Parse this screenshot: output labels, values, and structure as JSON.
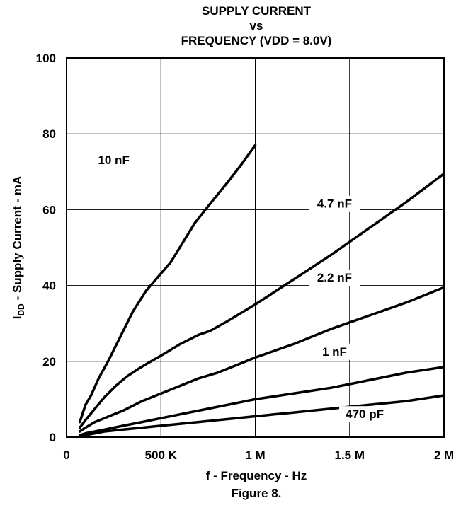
{
  "chart_data": {
    "type": "line",
    "title": [
      "SUPPLY CURRENT",
      "vs",
      "FREQUENCY (VDD = 8.0V)"
    ],
    "xlabel": "f - Frequency - Hz",
    "ylabel": {
      "main": "I",
      "sub": "DD",
      "rest": " - Supply Current - mA"
    },
    "caption": "Figure 8.",
    "xlim": [
      0,
      2000000
    ],
    "ylim": [
      0,
      100
    ],
    "x_ticks": [
      {
        "value": 0,
        "label": "0"
      },
      {
        "value": 500000,
        "label": "500 K"
      },
      {
        "value": 1000000,
        "label": "1 M"
      },
      {
        "value": 1500000,
        "label": "1.5 M"
      },
      {
        "value": 2000000,
        "label": "2 M"
      }
    ],
    "y_ticks": [
      {
        "value": 0,
        "label": "0"
      },
      {
        "value": 20,
        "label": "20"
      },
      {
        "value": 40,
        "label": "40"
      },
      {
        "value": 60,
        "label": "60"
      },
      {
        "value": 80,
        "label": "80"
      },
      {
        "value": 100,
        "label": "100"
      }
    ],
    "grid": true,
    "legend": "inline",
    "series": [
      {
        "name": "10 nF",
        "x": [
          70000,
          100000,
          130000,
          170000,
          220000,
          280000,
          350000,
          420000,
          480000,
          550000,
          600000,
          680000,
          760000,
          850000,
          920000,
          1000000
        ],
        "y": [
          4,
          8.5,
          11,
          15.5,
          20,
          26,
          33,
          38.5,
          42,
          46,
          50,
          56.5,
          61.5,
          67,
          71.5,
          77
        ]
      },
      {
        "name": "4.7 nF",
        "x": [
          70000,
          100000,
          150000,
          200000,
          260000,
          320000,
          380000,
          430000,
          500000,
          600000,
          700000,
          760000,
          850000,
          1000000,
          1200000,
          1400000,
          1600000,
          1800000,
          2000000
        ],
        "y": [
          2.5,
          4.5,
          7.5,
          10.5,
          13.5,
          16,
          18,
          19.5,
          21.5,
          24.5,
          27,
          28,
          30.5,
          35,
          41.5,
          48,
          55,
          62,
          69.5
        ]
      },
      {
        "name": "2.2 nF",
        "x": [
          70000,
          100000,
          150000,
          200000,
          250000,
          300000,
          400000,
          500000,
          600000,
          700000,
          800000,
          900000,
          1000000,
          1200000,
          1400000,
          1600000,
          1800000,
          2000000
        ],
        "y": [
          1.5,
          2.5,
          4,
          5,
          6,
          7,
          9.5,
          11.5,
          13.5,
          15.5,
          17,
          19,
          21,
          24.5,
          28.5,
          32,
          35.5,
          39.5
        ]
      },
      {
        "name": "1 nF",
        "x": [
          70000,
          100000,
          150000,
          200000,
          300000,
          400000,
          500000,
          600000,
          700000,
          800000,
          900000,
          1000000,
          1200000,
          1400000,
          1500000,
          1600000,
          1800000,
          2000000
        ],
        "y": [
          0.5,
          1,
          1.5,
          2,
          3,
          4,
          5,
          6,
          7,
          8,
          9,
          10,
          11.5,
          13,
          14,
          15,
          17,
          18.5
        ]
      },
      {
        "name": "470 pF",
        "x": [
          70000,
          100000,
          150000,
          200000,
          300000,
          400000,
          500000,
          600000,
          700000,
          800000,
          900000,
          1000000,
          1100000,
          1200000,
          1300000,
          1400000,
          1600000,
          1800000,
          2000000
        ],
        "y": [
          0.3,
          0.5,
          1,
          1.5,
          2,
          2.5,
          3,
          3.5,
          4,
          4.5,
          5,
          5.5,
          6,
          6.5,
          7,
          7.5,
          8.5,
          9.5,
          11
        ]
      }
    ]
  }
}
